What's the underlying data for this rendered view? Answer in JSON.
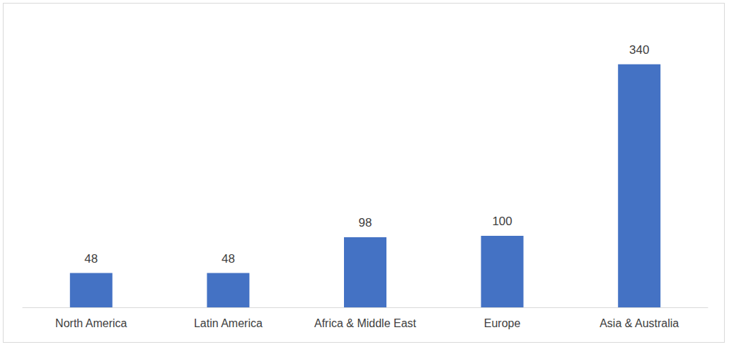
{
  "chart_data": {
    "type": "bar",
    "categories": [
      "North America",
      "Latin America",
      "Africa & Middle East",
      "Europe",
      "Asia & Australia"
    ],
    "values": [
      48,
      48,
      98,
      100,
      340
    ],
    "color": "#4472c4",
    "ylim": [
      0,
      420
    ],
    "grid": false,
    "data_labels": true,
    "tick_labels": "x"
  }
}
